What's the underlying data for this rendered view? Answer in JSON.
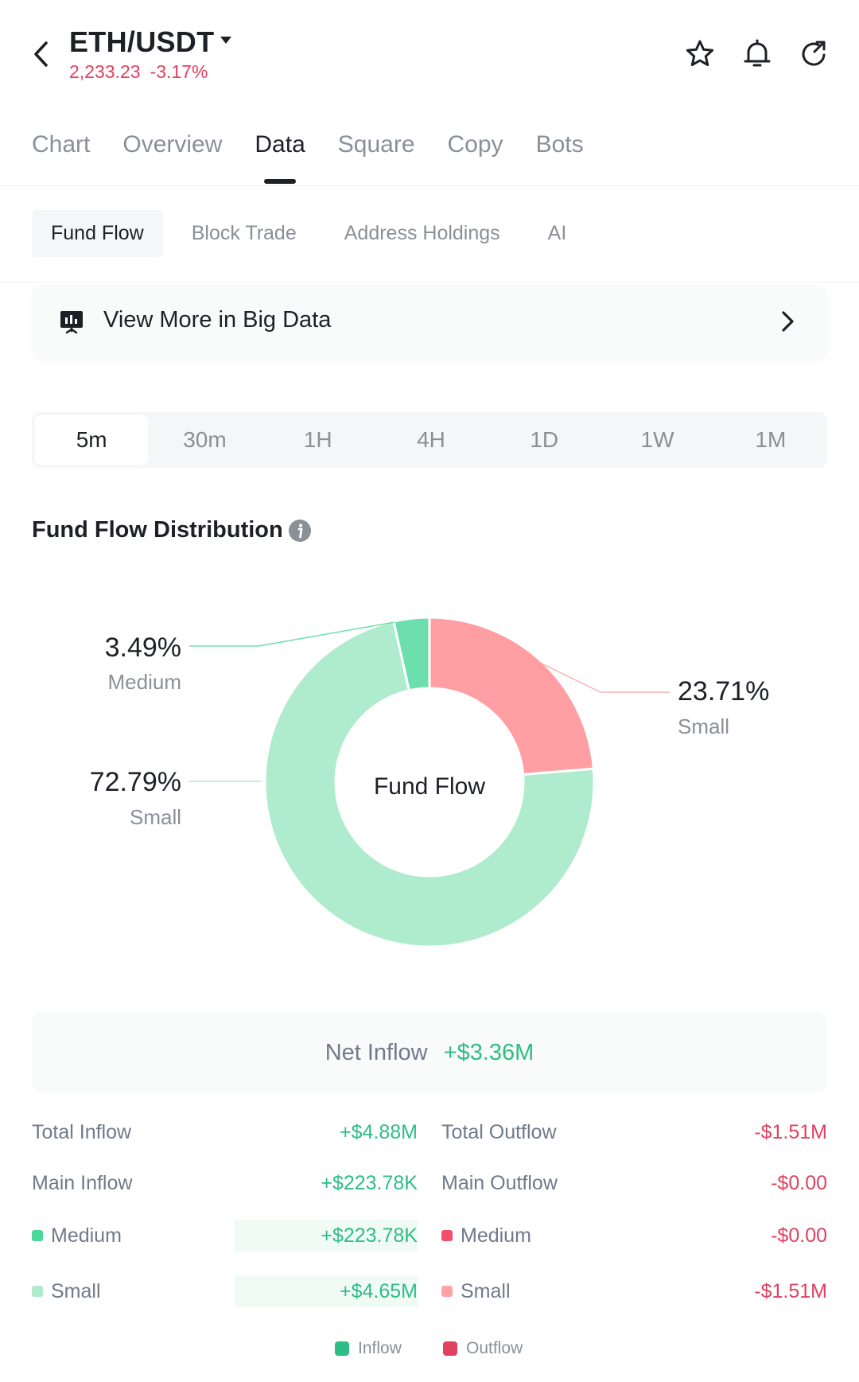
{
  "header": {
    "pair": "ETH/USDT",
    "price": "2,233.23",
    "change": "-3.17%"
  },
  "main_tabs": [
    "Chart",
    "Overview",
    "Data",
    "Square",
    "Copy",
    "Bots"
  ],
  "sub_tabs": [
    "Fund Flow",
    "Block Trade",
    "Address Holdings",
    "AI"
  ],
  "banner": {
    "text": "View More in Big Data"
  },
  "ranges": [
    "5m",
    "30m",
    "1H",
    "4H",
    "1D",
    "1W",
    "1M"
  ],
  "section": {
    "title": "Fund Flow Distribution"
  },
  "donut": {
    "center_label": "Fund Flow",
    "segments": [
      {
        "pct": "23.71%",
        "name": "Small",
        "value": 23.71,
        "color": "#ff9ea3"
      },
      {
        "pct": "72.79%",
        "name": "Small",
        "value": 72.79,
        "color": "#aeeccd"
      },
      {
        "pct": "3.49%",
        "name": "Medium",
        "value": 3.49,
        "color": "#6ddfac"
      }
    ]
  },
  "net": {
    "label": "Net Inflow",
    "value": "+$3.36M"
  },
  "table": {
    "total_inflow_label": "Total Inflow",
    "total_inflow": "+$4.88M",
    "total_outflow_label": "Total Outflow",
    "total_outflow": "-$1.51M",
    "main_inflow_label": "Main Inflow",
    "main_inflow": "+$223.78K",
    "main_outflow_label": "Main Outflow",
    "main_outflow": "-$0.00",
    "medium_label": "Medium",
    "medium_inflow": "+$223.78K",
    "medium_outflow": "-$0.00",
    "small_label": "Small",
    "small_inflow": "+$4.65M",
    "small_outflow": "-$1.51M"
  },
  "legend": {
    "inflow": "Inflow",
    "outflow": "Outflow"
  },
  "colors": {
    "green": "#2ebd85",
    "red": "#e0415f",
    "medium_in": "#4cd79a",
    "small_in": "#aeeccd",
    "medium_out": "#f0506e",
    "small_out": "#ffa3a8"
  }
}
